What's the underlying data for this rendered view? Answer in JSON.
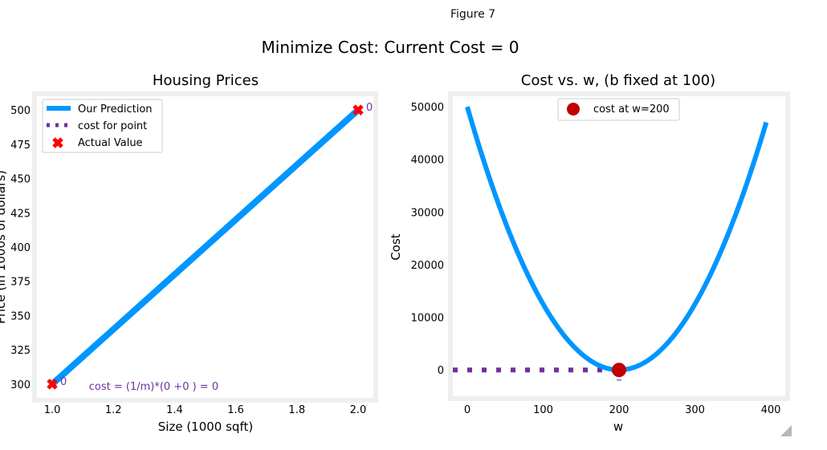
{
  "window": {
    "title": "Figure 7"
  },
  "figure": {
    "suptitle": "Minimize Cost: Current Cost = 0"
  },
  "colors": {
    "prediction": "#0096ff",
    "cost_point": "#7030a0",
    "actual": "#ff0000",
    "marker": "#c00000",
    "frame": "#efefef"
  },
  "chart_data": [
    {
      "type": "line",
      "title": "Housing Prices",
      "xlabel": "Size (1000 sqft)",
      "ylabel": "Price (in 1000s of dollars)",
      "xlim": [
        0.95,
        2.05
      ],
      "ylim": [
        290,
        510
      ],
      "xticks": [
        1.0,
        1.2,
        1.4,
        1.6,
        1.8,
        2.0
      ],
      "xtick_labels": [
        "1.0",
        "1.2",
        "1.4",
        "1.6",
        "1.8",
        "2.0"
      ],
      "yticks": [
        300,
        325,
        350,
        375,
        400,
        425,
        450,
        475,
        500
      ],
      "ytick_labels": [
        "300",
        "325",
        "350",
        "375",
        "400",
        "425",
        "450",
        "475",
        "500"
      ],
      "series": [
        {
          "name": "Our Prediction",
          "kind": "line",
          "x": [
            1.0,
            2.0
          ],
          "y": [
            300,
            500
          ]
        },
        {
          "name": "cost for point",
          "kind": "dotted",
          "x": [],
          "y": []
        },
        {
          "name": "Actual Value",
          "kind": "scatter",
          "x": [
            1.0,
            2.0
          ],
          "y": [
            300,
            500
          ]
        }
      ],
      "point_annotations": [
        {
          "x": 1.0,
          "y": 300,
          "text": "0"
        },
        {
          "x": 2.0,
          "y": 500,
          "text": "0"
        }
      ],
      "annotation": {
        "text": "cost = (1/m)*(0 +0 ) = 0",
        "x": 1.12,
        "y": 297
      },
      "legend": "top-left",
      "grid": false
    },
    {
      "type": "line",
      "title": "Cost vs. w, (b fixed at 100)",
      "xlabel": "w",
      "ylabel": "Cost",
      "xlim": [
        -19,
        419
      ],
      "ylim": [
        -5000,
        52000
      ],
      "xticks": [
        0,
        100,
        200,
        300,
        400
      ],
      "xtick_labels": [
        "0",
        "100",
        "200",
        "300",
        "400"
      ],
      "yticks": [
        0,
        10000,
        20000,
        30000,
        40000,
        50000
      ],
      "ytick_labels": [
        "0",
        "10000",
        "20000",
        "30000",
        "40000",
        "50000"
      ],
      "curve": {
        "formula": "cost = 1.25 * (w - 200)^2",
        "w_min": 0,
        "w_max": 394
      },
      "series": [
        {
          "name": "cost at w=200",
          "kind": "point",
          "x": [
            200
          ],
          "y": [
            0
          ]
        }
      ],
      "horizontal_dotted": {
        "y": 0,
        "x_from": -19,
        "x_to": 200
      },
      "vertical_dotted": {
        "x": 200,
        "y_from": 0,
        "y_to": -2000
      },
      "legend": "top-center",
      "grid": false
    }
  ]
}
